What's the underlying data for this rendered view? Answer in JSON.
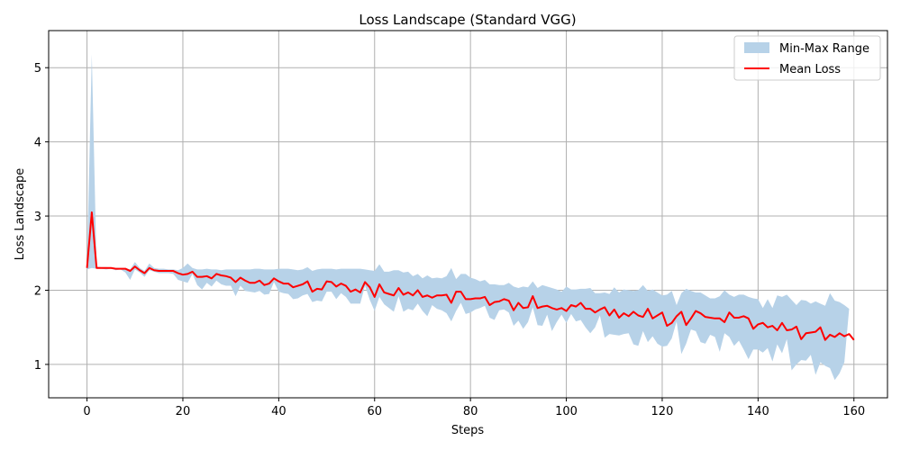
{
  "chart_data": {
    "type": "area",
    "title": "Loss Landscape (Standard VGG)",
    "xlabel": "Steps",
    "ylabel": "Loss Landscape",
    "xlim": [
      -8,
      167
    ],
    "ylim": [
      0.55,
      5.5
    ],
    "xticks": [
      0,
      20,
      40,
      60,
      80,
      100,
      120,
      140,
      160
    ],
    "yticks": [
      1,
      2,
      3,
      4,
      5
    ],
    "grid": true,
    "legend_position": "top-right",
    "x_step": 1,
    "series": [
      {
        "name": "Min-Max Range",
        "kind": "band",
        "color": "#b7d2e8",
        "max": [
          2.32,
          5.18,
          2.32,
          2.31,
          2.31,
          2.3,
          2.3,
          2.3,
          2.3,
          2.28,
          2.38,
          2.3,
          2.26,
          2.36,
          2.3,
          2.29,
          2.29,
          2.28,
          2.28,
          2.27,
          2.3,
          2.36,
          2.3,
          2.28,
          2.28,
          2.29,
          2.28,
          2.28,
          2.27,
          2.28,
          2.28,
          2.28,
          2.28,
          2.28,
          2.28,
          2.29,
          2.29,
          2.28,
          2.28,
          2.28,
          2.29,
          2.29,
          2.29,
          2.28,
          2.27,
          2.28,
          2.31,
          2.26,
          2.28,
          2.29,
          2.29,
          2.29,
          2.28,
          2.29,
          2.29,
          2.29,
          2.29,
          2.29,
          2.28,
          2.27,
          2.26,
          2.35,
          2.25,
          2.25,
          2.27,
          2.27,
          2.24,
          2.25,
          2.19,
          2.22,
          2.16,
          2.2,
          2.16,
          2.17,
          2.16,
          2.19,
          2.3,
          2.15,
          2.22,
          2.22,
          2.17,
          2.15,
          2.12,
          2.14,
          2.08,
          2.08,
          2.07,
          2.07,
          2.1,
          2.05,
          2.03,
          2.05,
          2.04,
          2.12,
          2.03,
          2.07,
          2.05,
          2.03,
          2.01,
          1.98,
          2.05,
          2.01,
          2.01,
          2.02,
          2.02,
          2.03,
          1.96,
          1.96,
          1.97,
          1.95,
          2.04,
          1.97,
          2.01,
          2.0,
          1.99,
          2.0,
          2.07,
          1.99,
          2.01,
          1.97,
          1.93,
          1.94,
          1.99,
          1.8,
          1.96,
          2.02,
          1.99,
          1.97,
          1.97,
          1.93,
          1.89,
          1.89,
          1.92,
          2.0,
          1.94,
          1.91,
          1.94,
          1.94,
          1.91,
          1.89,
          1.88,
          1.76,
          1.88,
          1.76,
          1.93,
          1.91,
          1.94,
          1.87,
          1.8,
          1.87,
          1.86,
          1.82,
          1.85,
          1.82,
          1.79,
          1.96,
          1.86,
          1.84,
          1.8,
          1.75
        ],
        "min": [
          2.28,
          2.3,
          2.29,
          2.29,
          2.28,
          2.29,
          2.27,
          2.28,
          2.24,
          2.14,
          2.28,
          2.24,
          2.18,
          2.27,
          2.25,
          2.23,
          2.23,
          2.23,
          2.22,
          2.14,
          2.12,
          2.1,
          2.22,
          2.07,
          2.01,
          2.1,
          2.05,
          2.13,
          2.08,
          2.06,
          2.06,
          1.92,
          2.06,
          1.99,
          1.98,
          1.97,
          1.99,
          1.94,
          1.95,
          2.11,
          1.98,
          1.96,
          1.95,
          1.88,
          1.89,
          1.93,
          1.95,
          1.84,
          1.86,
          1.85,
          1.98,
          1.98,
          1.88,
          1.96,
          1.91,
          1.82,
          1.82,
          1.82,
          2.06,
          1.87,
          1.72,
          1.91,
          1.81,
          1.76,
          1.71,
          1.92,
          1.71,
          1.75,
          1.73,
          1.82,
          1.72,
          1.65,
          1.8,
          1.75,
          1.73,
          1.69,
          1.58,
          1.72,
          1.83,
          1.68,
          1.7,
          1.74,
          1.76,
          1.79,
          1.63,
          1.6,
          1.73,
          1.74,
          1.7,
          1.52,
          1.59,
          1.48,
          1.57,
          1.77,
          1.53,
          1.52,
          1.67,
          1.45,
          1.57,
          1.67,
          1.56,
          1.68,
          1.58,
          1.6,
          1.5,
          1.42,
          1.5,
          1.66,
          1.36,
          1.41,
          1.4,
          1.39,
          1.41,
          1.42,
          1.27,
          1.25,
          1.45,
          1.3,
          1.38,
          1.28,
          1.24,
          1.25,
          1.35,
          1.58,
          1.14,
          1.28,
          1.47,
          1.45,
          1.3,
          1.28,
          1.4,
          1.37,
          1.17,
          1.42,
          1.37,
          1.25,
          1.32,
          1.2,
          1.07,
          1.2,
          1.2,
          1.16,
          1.22,
          1.04,
          1.27,
          1.15,
          1.34,
          0.92,
          1.0,
          1.06,
          1.05,
          1.13,
          0.86,
          1.03,
          0.98,
          0.95,
          0.79,
          0.88,
          1.03
        ]
      },
      {
        "name": "Mean Loss",
        "kind": "line",
        "color": "#ff0000",
        "values": [
          2.3,
          3.05,
          2.3,
          2.3,
          2.3,
          2.3,
          2.29,
          2.29,
          2.29,
          2.26,
          2.32,
          2.27,
          2.23,
          2.3,
          2.27,
          2.26,
          2.26,
          2.26,
          2.26,
          2.23,
          2.21,
          2.22,
          2.25,
          2.18,
          2.18,
          2.19,
          2.16,
          2.22,
          2.2,
          2.19,
          2.17,
          2.11,
          2.17,
          2.13,
          2.1,
          2.1,
          2.13,
          2.07,
          2.09,
          2.16,
          2.12,
          2.09,
          2.09,
          2.04,
          2.06,
          2.08,
          2.12,
          1.98,
          2.02,
          2.01,
          2.12,
          2.11,
          2.05,
          2.09,
          2.06,
          1.98,
          2.01,
          1.97,
          2.11,
          2.04,
          1.91,
          2.08,
          1.97,
          1.95,
          1.93,
          2.03,
          1.94,
          1.97,
          1.93,
          2.0,
          1.91,
          1.93,
          1.9,
          1.93,
          1.93,
          1.94,
          1.83,
          1.98,
          1.98,
          1.88,
          1.88,
          1.89,
          1.89,
          1.91,
          1.8,
          1.84,
          1.85,
          1.88,
          1.86,
          1.73,
          1.83,
          1.76,
          1.77,
          1.92,
          1.76,
          1.78,
          1.79,
          1.76,
          1.74,
          1.76,
          1.72,
          1.8,
          1.78,
          1.83,
          1.75,
          1.75,
          1.7,
          1.74,
          1.77,
          1.66,
          1.74,
          1.63,
          1.69,
          1.65,
          1.71,
          1.66,
          1.64,
          1.75,
          1.62,
          1.66,
          1.7,
          1.52,
          1.56,
          1.65,
          1.71,
          1.53,
          1.62,
          1.72,
          1.69,
          1.64,
          1.63,
          1.62,
          1.62,
          1.57,
          1.7,
          1.63,
          1.63,
          1.65,
          1.62,
          1.48,
          1.54,
          1.56,
          1.5,
          1.52,
          1.46,
          1.56,
          1.46,
          1.47,
          1.51,
          1.34,
          1.42,
          1.43,
          1.44,
          1.5,
          1.33,
          1.4,
          1.37,
          1.42,
          1.38,
          1.41,
          1.33
        ]
      }
    ]
  }
}
